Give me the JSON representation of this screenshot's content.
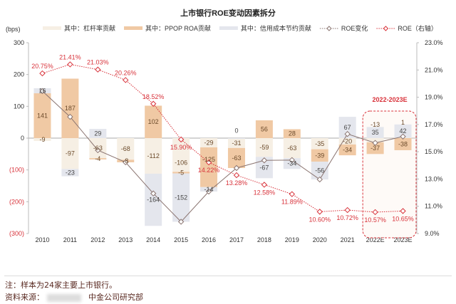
{
  "chart_data": {
    "type": "bar",
    "title": "上市银行ROE变动因素拆分",
    "ylabel": "(bps)",
    "categories": [
      "2010",
      "2011",
      "2012",
      "2013",
      "2014",
      "2015",
      "2016",
      "2017",
      "2018",
      "2019",
      "2020",
      "2021",
      "2022E",
      "2023E"
    ],
    "ylim": [
      -300,
      300
    ],
    "yticks": [
      "300",
      "200",
      "100",
      "0",
      "(100)",
      "(200)",
      "(300)"
    ],
    "y2lim": [
      9.0,
      23.0
    ],
    "y2ticks": [
      "23.0%",
      "21.0%",
      "19.0%",
      "17.0%",
      "15.0%",
      "13.0%",
      "11.0%",
      "9.0%"
    ],
    "legend_placement": "top",
    "bar_series": [
      {
        "name": "其中：杠杆率贡献",
        "color": "#f6efe4",
        "values": [
          -9,
          -97,
          -63,
          -68,
          -112,
          -106,
          -29,
          -31,
          -59,
          -63,
          -35,
          -20,
          -13,
          1
        ]
      },
      {
        "name": "其中：PPOP ROA贡献",
        "color": "#f0c9a4",
        "values": [
          141,
          187,
          -4,
          -8,
          102,
          -5,
          -125,
          -63,
          56,
          28,
          -39,
          -34,
          -37,
          -38
        ]
      },
      {
        "name": "其中：信用成本节约贡献",
        "color": "#e4e6ed",
        "values": [
          16,
          -23,
          29,
          null,
          -164,
          -152,
          -14,
          0,
          -67,
          -34,
          -56,
          67,
          35,
          42
        ]
      }
    ],
    "line_series": [
      {
        "name": "ROE变化",
        "axis": "left",
        "color": "#8a7470",
        "values": [
          148,
          67,
          -38,
          -76,
          -174,
          -263,
          -168,
          -94,
          -70,
          -69,
          -130,
          13,
          -15,
          5
        ]
      },
      {
        "name": "ROE（右轴）",
        "axis": "right",
        "color": "#d8323a",
        "values": [
          20.75,
          21.41,
          21.03,
          20.26,
          18.52,
          15.9,
          14.22,
          13.28,
          12.58,
          11.89,
          10.6,
          10.72,
          10.57,
          10.65
        ],
        "labels": [
          "20.75%",
          "21.41%",
          "21.03%",
          "20.26%",
          "18.52%",
          "15.90%",
          "14.22%",
          "13.28%",
          "12.58%",
          "11.89%",
          "10.60%",
          "10.72%",
          "10.57%",
          "10.65%"
        ]
      }
    ],
    "annotation": "2022-2023E"
  },
  "footer": {
    "note": "注：样本为24家主要上市银行。",
    "source_label": "资料来源：",
    "source": "中金公司研究部"
  }
}
